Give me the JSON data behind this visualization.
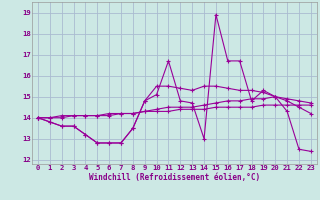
{
  "xlabel": "Windchill (Refroidissement éolien,°C)",
  "background_color": "#cce8e4",
  "grid_color": "#aabbd0",
  "line_color": "#990099",
  "ylim": [
    11.8,
    19.5
  ],
  "xlim": [
    -0.5,
    23.5
  ],
  "yticks": [
    12,
    13,
    14,
    15,
    16,
    17,
    18,
    19
  ],
  "xticks": [
    0,
    1,
    2,
    3,
    4,
    5,
    6,
    7,
    8,
    9,
    10,
    11,
    12,
    13,
    14,
    15,
    16,
    17,
    18,
    19,
    20,
    21,
    22,
    23
  ],
  "tick_color": "#880088",
  "series": [
    [
      14.0,
      13.8,
      13.6,
      13.6,
      13.2,
      12.8,
      12.8,
      12.8,
      13.5,
      14.8,
      15.1,
      16.7,
      14.8,
      14.7,
      13.0,
      18.9,
      16.7,
      16.7,
      14.8,
      15.3,
      15.0,
      14.3,
      12.5,
      12.4
    ],
    [
      14.0,
      13.8,
      13.6,
      13.6,
      13.2,
      12.8,
      12.8,
      12.8,
      13.5,
      14.8,
      15.5,
      15.5,
      15.4,
      15.3,
      15.5,
      15.5,
      15.4,
      15.3,
      15.3,
      15.2,
      15.0,
      14.8,
      14.5,
      14.2
    ],
    [
      14.0,
      14.0,
      14.1,
      14.1,
      14.1,
      14.1,
      14.2,
      14.2,
      14.2,
      14.3,
      14.3,
      14.3,
      14.4,
      14.4,
      14.4,
      14.5,
      14.5,
      14.5,
      14.5,
      14.6,
      14.6,
      14.6,
      14.6,
      14.6
    ],
    [
      14.0,
      14.0,
      14.0,
      14.1,
      14.1,
      14.1,
      14.1,
      14.2,
      14.2,
      14.3,
      14.4,
      14.5,
      14.5,
      14.5,
      14.6,
      14.7,
      14.8,
      14.8,
      14.9,
      14.9,
      15.0,
      14.9,
      14.8,
      14.7
    ]
  ]
}
